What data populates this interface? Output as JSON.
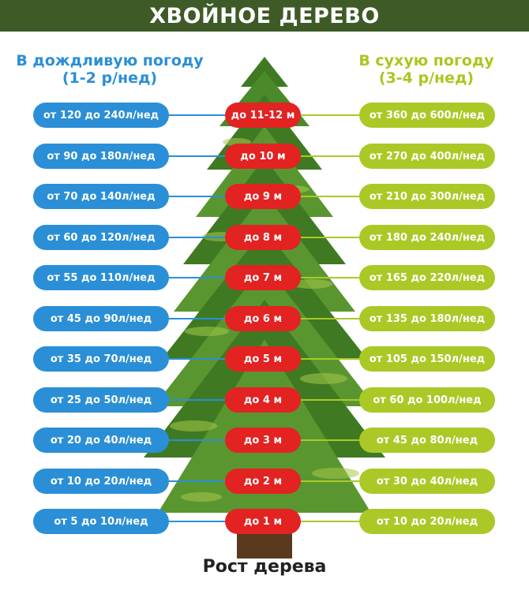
{
  "title": "ХВОЙНОЕ ДЕРЕВО",
  "rain": {
    "line1": "В дождливую погоду",
    "line2": "(1-2 р/нед)"
  },
  "dry": {
    "line1": "В сухую погоду",
    "line2": "(3-4 р/нед)"
  },
  "footer": "Рост дерева",
  "colors": {
    "title_bg": "#3e5b27",
    "rain": "#2a8fd6",
    "dry": "#aac926",
    "height": "#e32222",
    "tree": "#4e8a2a"
  },
  "rows": [
    {
      "rain": "от 120 до 240л/нед",
      "height": "до 11-12 м",
      "dry": "от 360 до 600л/нед"
    },
    {
      "rain": "от 90 до 180л/нед",
      "height": "до 10 м",
      "dry": "от 270 до 400л/нед"
    },
    {
      "rain": "от 70 до 140л/нед",
      "height": "до 9 м",
      "dry": "от 210 до 300л/нед"
    },
    {
      "rain": "от 60 до 120л/нед",
      "height": "до 8 м",
      "dry": "от 180 до 240л/нед"
    },
    {
      "rain": "от 55 до 110л/нед",
      "height": "до 7 м",
      "dry": "от 165 до 220л/нед"
    },
    {
      "rain": "от 45 до 90л/нед",
      "height": "до 6 м",
      "dry": "от 135 до 180л/нед"
    },
    {
      "rain": "от 35 до 70л/нед",
      "height": "до 5 м",
      "dry": "от 105 до 150л/нед"
    },
    {
      "rain": "от 25 до 50л/нед",
      "height": "до 4 м",
      "dry": "от 60 до 100л/нед"
    },
    {
      "rain": "от 20 до 40л/нед",
      "height": "до 3 м",
      "dry": "от 45 до 80л/нед"
    },
    {
      "rain": "от 10 до 20л/нед",
      "height": "до 2 м",
      "dry": "от 30 до 40л/нед"
    },
    {
      "rain": "от 5 до 10л/нед",
      "height": "до 1 м",
      "dry": "от 10 до 20л/нед"
    }
  ]
}
